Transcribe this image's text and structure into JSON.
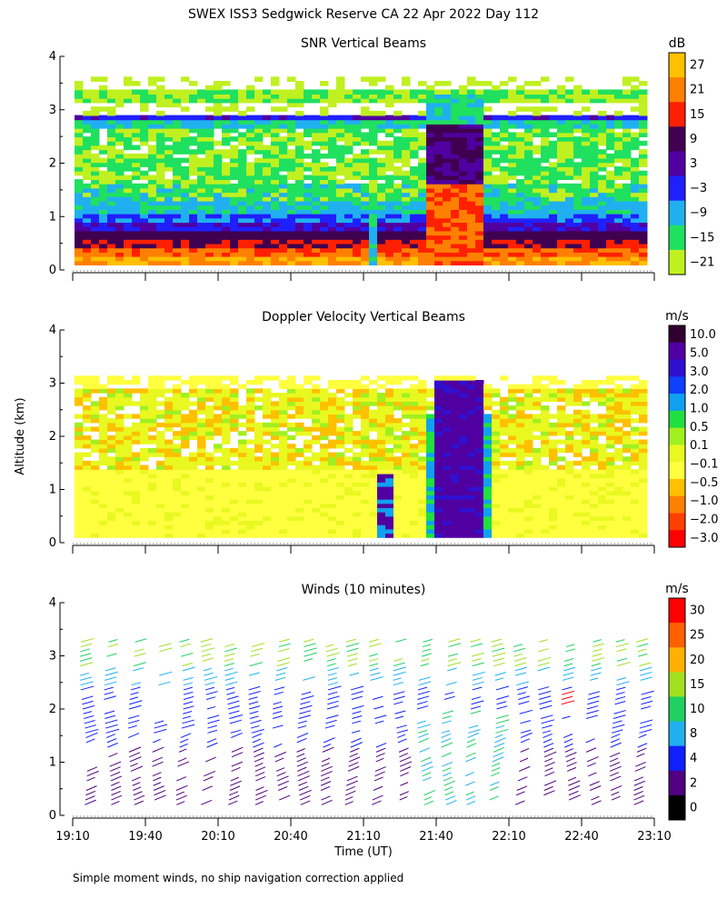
{
  "title": "SWEX ISS3 Sedgwick Reserve CA  22 Apr 2022 Day 112",
  "ylabel": "Altitude (km)",
  "xlabel": "Time (UT)",
  "footnote": "Simple moment winds, no ship navigation correction applied",
  "chart_data": [
    {
      "type": "heatmap",
      "title": "SNR Vertical Beams",
      "units": "dB",
      "x_ticks": [
        "19:10",
        "19:40",
        "20:10",
        "20:40",
        "21:10",
        "21:40",
        "22:10",
        "22:40",
        "23:10"
      ],
      "ylim": [
        0,
        4
      ],
      "y_ticks": [
        "0",
        "1",
        "2",
        "3",
        "4"
      ],
      "colorbar": {
        "labels": [
          "27",
          "21",
          "15",
          "9",
          "3",
          "−3",
          "−9",
          "−15",
          "−21"
        ],
        "colors": [
          "#ffc000",
          "#ff8000",
          "#ff2000",
          "#400050",
          "#5000a0",
          "#2020ff",
          "#20b0f0",
          "#20e060",
          "#c0f020"
        ]
      }
    },
    {
      "type": "heatmap",
      "title": "Doppler Velocity Vertical Beams",
      "units": "m/s",
      "x_ticks": [
        "19:10",
        "19:40",
        "20:10",
        "20:40",
        "21:10",
        "21:40",
        "22:10",
        "22:40",
        "23:10"
      ],
      "ylim": [
        0,
        4
      ],
      "y_ticks": [
        "0",
        "1",
        "2",
        "3",
        "4"
      ],
      "colorbar": {
        "labels": [
          "10.0",
          "5.0",
          "3.0",
          "2.0",
          "1.0",
          "0.5",
          "0.1",
          "−0.1",
          "−0.5",
          "−1.0",
          "−2.0",
          "−3.0"
        ],
        "colors": [
          "#300030",
          "#5000a0",
          "#3010d0",
          "#1040ff",
          "#10a0f0",
          "#20e040",
          "#a0f020",
          "#e8f820",
          "#ffff40",
          "#ffc000",
          "#ff8000",
          "#ff4000",
          "#ff0000"
        ]
      }
    },
    {
      "type": "scatter",
      "title": "Winds (10 minutes)",
      "units": "m/s",
      "x_ticks": [
        "19:10",
        "19:40",
        "20:10",
        "20:40",
        "21:10",
        "21:40",
        "22:10",
        "22:40",
        "23:10"
      ],
      "ylim": [
        0,
        4
      ],
      "y_ticks": [
        "0",
        "1",
        "2",
        "3",
        "4"
      ],
      "colorbar": {
        "labels": [
          "30",
          "25",
          "20",
          "15",
          "10",
          "8",
          "4",
          "2",
          "0"
        ],
        "colors": [
          "#ff0000",
          "#ff6000",
          "#ffb000",
          "#a0e020",
          "#20d060",
          "#20b0f0",
          "#1020ff",
          "#500080",
          "#000000"
        ]
      }
    }
  ]
}
